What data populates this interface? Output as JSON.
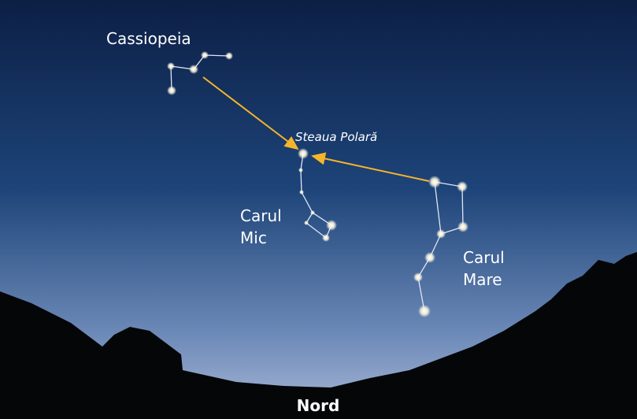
{
  "labels": {
    "cassiopeia": "Cassiopeia",
    "polaris": "Steaua Polară",
    "little_dipper": [
      "Carul",
      "Mic"
    ],
    "big_dipper": [
      "Carul",
      "Mare"
    ],
    "direction": "Nord"
  }
}
